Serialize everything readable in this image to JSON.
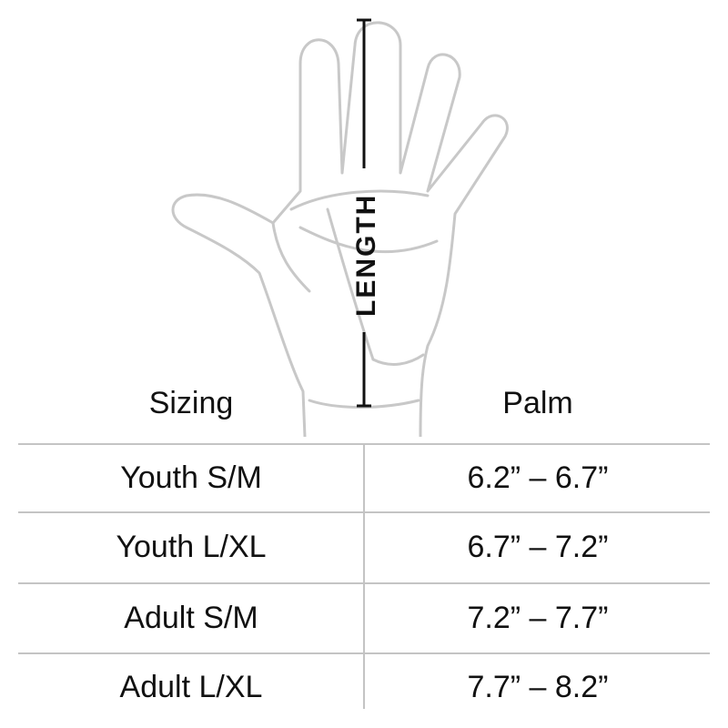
{
  "diagram": {
    "measure_label": "LENGTH"
  },
  "table": {
    "headers": [
      "Sizing",
      "Palm"
    ],
    "rows": [
      [
        "Youth S/M",
        "6.2” – 6.7”"
      ],
      [
        "Youth L/XL",
        "6.7” – 7.2”"
      ],
      [
        "Adult S/M",
        "7.2” – 7.7”"
      ],
      [
        "Adult L/XL",
        "7.7” – 8.2”"
      ]
    ]
  }
}
